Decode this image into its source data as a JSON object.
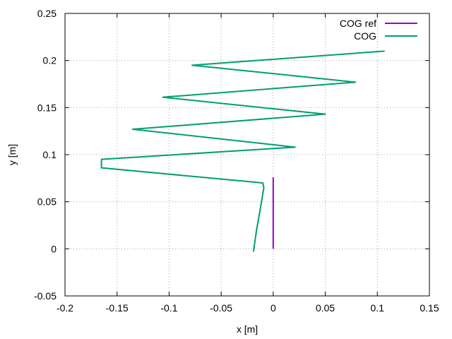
{
  "chart_data": {
    "type": "line",
    "title": "",
    "xlabel": "x [m]",
    "ylabel": "y [m]",
    "xlim": [
      -0.2,
      0.15
    ],
    "ylim": [
      -0.05,
      0.25
    ],
    "xticks": [
      -0.2,
      -0.15,
      -0.1,
      -0.05,
      0,
      0.05,
      0.1,
      0.15
    ],
    "xtick_labels": [
      "-0.2",
      "-0.15",
      "-0.1",
      "-0.05",
      "0",
      "0.05",
      "0.1",
      "0.15"
    ],
    "yticks": [
      -0.05,
      0,
      0.05,
      0.1,
      0.15,
      0.2,
      0.25
    ],
    "ytick_labels": [
      "-0.05",
      "0",
      "0.05",
      "0.1",
      "0.15",
      "0.2",
      "0.25"
    ],
    "grid": true,
    "legend_position": "top-right",
    "series": [
      {
        "name": "COG ref",
        "color": "#9400d3",
        "x": [
          0.0,
          0.0
        ],
        "y": [
          0.0,
          0.076
        ]
      },
      {
        "name": "COG",
        "color": "#009e73",
        "x": [
          -0.019,
          -0.016,
          -0.012,
          -0.009,
          -0.01,
          -0.165,
          -0.165,
          0.021,
          -0.135,
          0.05,
          -0.106,
          0.079,
          -0.078,
          0.107
        ],
        "y": [
          -0.003,
          0.02,
          0.045,
          0.065,
          0.07,
          0.086,
          0.095,
          0.108,
          0.127,
          0.143,
          0.161,
          0.177,
          0.195,
          0.21
        ]
      }
    ]
  }
}
